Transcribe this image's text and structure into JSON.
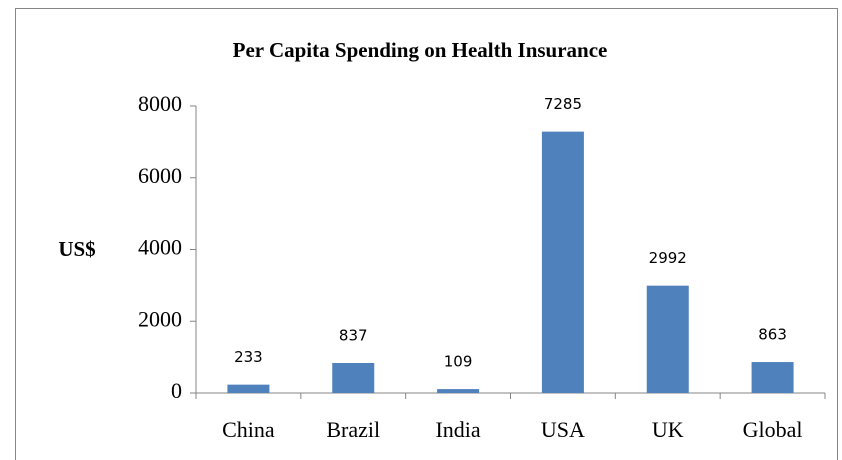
{
  "chart_data": {
    "type": "bar",
    "title": "Per Capita Spending on Health Insurance",
    "y_label": "US$",
    "categories": [
      "China",
      "Brazil",
      "India",
      "USA",
      "UK",
      "Global"
    ],
    "values": [
      233,
      837,
      109,
      7285,
      2992,
      863
    ],
    "color": "#4f81bd",
    "ylim": [
      0,
      8000
    ],
    "yticks": [
      0,
      2000,
      4000,
      6000,
      8000
    ],
    "grid": false
  }
}
